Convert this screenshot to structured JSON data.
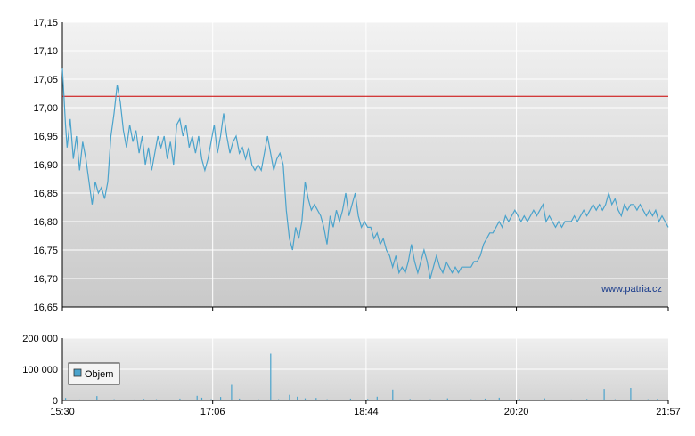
{
  "chart_data": [
    {
      "type": "line",
      "title": "",
      "xlabel": "",
      "ylabel": "",
      "ylim": [
        16.65,
        17.15
      ],
      "yticks": [
        "17,15",
        "17,10",
        "17,05",
        "17,00",
        "16,95",
        "16,90",
        "16,85",
        "16,80",
        "16,75",
        "16,70",
        "16,65"
      ],
      "ytick_values": [
        17.15,
        17.1,
        17.05,
        17.0,
        16.95,
        16.9,
        16.85,
        16.8,
        16.75,
        16.7,
        16.65
      ],
      "xticks": [
        "15:30",
        "17:06",
        "18:44",
        "20:20",
        "21:57"
      ],
      "xtick_values": [
        "15:30",
        "17:06",
        "18:44",
        "20:20",
        "21:57"
      ],
      "xlim": [
        "15:30",
        "21:57"
      ],
      "reference_line": {
        "y": 17.02,
        "color": "#cc0000"
      },
      "series_color": "#4aa3cc",
      "watermark": "www.patria.cz",
      "grid": true,
      "series": [
        {
          "points": [
            [
              "15:30",
              17.07
            ],
            [
              "15:31",
              17.02
            ],
            [
              "15:32",
              16.97
            ],
            [
              "15:33",
              16.93
            ],
            [
              "15:35",
              16.98
            ],
            [
              "15:37",
              16.91
            ],
            [
              "15:39",
              16.95
            ],
            [
              "15:41",
              16.89
            ],
            [
              "15:43",
              16.94
            ],
            [
              "15:45",
              16.91
            ],
            [
              "15:47",
              16.87
            ],
            [
              "15:49",
              16.83
            ],
            [
              "15:51",
              16.87
            ],
            [
              "15:53",
              16.85
            ],
            [
              "15:55",
              16.86
            ],
            [
              "15:57",
              16.84
            ],
            [
              "15:59",
              16.87
            ],
            [
              "16:01",
              16.95
            ],
            [
              "16:03",
              16.99
            ],
            [
              "16:05",
              17.04
            ],
            [
              "16:07",
              17.01
            ],
            [
              "16:09",
              16.96
            ],
            [
              "16:11",
              16.93
            ],
            [
              "16:13",
              16.97
            ],
            [
              "16:15",
              16.94
            ],
            [
              "16:17",
              16.96
            ],
            [
              "16:19",
              16.92
            ],
            [
              "16:21",
              16.95
            ],
            [
              "16:23",
              16.9
            ],
            [
              "16:25",
              16.93
            ],
            [
              "16:27",
              16.89
            ],
            [
              "16:29",
              16.92
            ],
            [
              "16:31",
              16.95
            ],
            [
              "16:33",
              16.93
            ],
            [
              "16:35",
              16.95
            ],
            [
              "16:37",
              16.91
            ],
            [
              "16:39",
              16.94
            ],
            [
              "16:41",
              16.9
            ],
            [
              "16:43",
              16.97
            ],
            [
              "16:45",
              16.98
            ],
            [
              "16:47",
              16.95
            ],
            [
              "16:49",
              16.97
            ],
            [
              "16:51",
              16.93
            ],
            [
              "16:53",
              16.95
            ],
            [
              "16:55",
              16.92
            ],
            [
              "16:57",
              16.95
            ],
            [
              "16:59",
              16.91
            ],
            [
              "17:01",
              16.89
            ],
            [
              "17:03",
              16.91
            ],
            [
              "17:05",
              16.94
            ],
            [
              "17:07",
              16.97
            ],
            [
              "17:09",
              16.92
            ],
            [
              "17:11",
              16.95
            ],
            [
              "17:13",
              16.99
            ],
            [
              "17:15",
              16.95
            ],
            [
              "17:17",
              16.92
            ],
            [
              "17:19",
              16.94
            ],
            [
              "17:21",
              16.95
            ],
            [
              "17:23",
              16.92
            ],
            [
              "17:25",
              16.93
            ],
            [
              "17:27",
              16.91
            ],
            [
              "17:29",
              16.93
            ],
            [
              "17:31",
              16.9
            ],
            [
              "17:33",
              16.89
            ],
            [
              "17:35",
              16.9
            ],
            [
              "17:37",
              16.89
            ],
            [
              "17:39",
              16.92
            ],
            [
              "17:41",
              16.95
            ],
            [
              "17:43",
              16.92
            ],
            [
              "17:45",
              16.89
            ],
            [
              "17:47",
              16.91
            ],
            [
              "17:49",
              16.92
            ],
            [
              "17:51",
              16.9
            ],
            [
              "17:53",
              16.82
            ],
            [
              "17:55",
              16.77
            ],
            [
              "17:57",
              16.75
            ],
            [
              "17:59",
              16.79
            ],
            [
              "18:01",
              16.77
            ],
            [
              "18:03",
              16.8
            ],
            [
              "18:05",
              16.87
            ],
            [
              "18:07",
              16.84
            ],
            [
              "18:09",
              16.82
            ],
            [
              "18:11",
              16.83
            ],
            [
              "18:13",
              16.82
            ],
            [
              "18:15",
              16.81
            ],
            [
              "18:17",
              16.79
            ],
            [
              "18:19",
              16.76
            ],
            [
              "18:21",
              16.81
            ],
            [
              "18:23",
              16.79
            ],
            [
              "18:25",
              16.82
            ],
            [
              "18:27",
              16.8
            ],
            [
              "18:29",
              16.82
            ],
            [
              "18:31",
              16.85
            ],
            [
              "18:33",
              16.81
            ],
            [
              "18:35",
              16.83
            ],
            [
              "18:37",
              16.85
            ],
            [
              "18:39",
              16.81
            ],
            [
              "18:41",
              16.79
            ],
            [
              "18:43",
              16.8
            ],
            [
              "18:45",
              16.79
            ],
            [
              "18:47",
              16.79
            ],
            [
              "18:49",
              16.77
            ],
            [
              "18:51",
              16.78
            ],
            [
              "18:53",
              16.76
            ],
            [
              "18:55",
              16.77
            ],
            [
              "18:57",
              16.75
            ],
            [
              "18:59",
              16.74
            ],
            [
              "19:01",
              16.72
            ],
            [
              "19:03",
              16.74
            ],
            [
              "19:05",
              16.71
            ],
            [
              "19:07",
              16.72
            ],
            [
              "19:09",
              16.71
            ],
            [
              "19:11",
              16.73
            ],
            [
              "19:13",
              16.76
            ],
            [
              "19:15",
              16.73
            ],
            [
              "19:17",
              16.71
            ],
            [
              "19:19",
              16.73
            ],
            [
              "19:21",
              16.75
            ],
            [
              "19:23",
              16.73
            ],
            [
              "19:25",
              16.7
            ],
            [
              "19:27",
              16.72
            ],
            [
              "19:29",
              16.74
            ],
            [
              "19:31",
              16.72
            ],
            [
              "19:33",
              16.71
            ],
            [
              "19:35",
              16.73
            ],
            [
              "19:37",
              16.72
            ],
            [
              "19:39",
              16.71
            ],
            [
              "19:41",
              16.72
            ],
            [
              "19:43",
              16.71
            ],
            [
              "19:45",
              16.72
            ],
            [
              "19:47",
              16.72
            ],
            [
              "19:49",
              16.72
            ],
            [
              "19:51",
              16.72
            ],
            [
              "19:53",
              16.73
            ],
            [
              "19:55",
              16.73
            ],
            [
              "19:57",
              16.74
            ],
            [
              "19:59",
              16.76
            ],
            [
              "20:01",
              16.77
            ],
            [
              "20:03",
              16.78
            ],
            [
              "20:05",
              16.78
            ],
            [
              "20:07",
              16.79
            ],
            [
              "20:09",
              16.8
            ],
            [
              "20:11",
              16.79
            ],
            [
              "20:13",
              16.81
            ],
            [
              "20:15",
              16.8
            ],
            [
              "20:17",
              16.81
            ],
            [
              "20:19",
              16.82
            ],
            [
              "20:21",
              16.81
            ],
            [
              "20:23",
              16.8
            ],
            [
              "20:25",
              16.81
            ],
            [
              "20:27",
              16.8
            ],
            [
              "20:29",
              16.81
            ],
            [
              "20:31",
              16.82
            ],
            [
              "20:33",
              16.81
            ],
            [
              "20:35",
              16.82
            ],
            [
              "20:37",
              16.83
            ],
            [
              "20:39",
              16.8
            ],
            [
              "20:41",
              16.81
            ],
            [
              "20:43",
              16.8
            ],
            [
              "20:45",
              16.79
            ],
            [
              "20:47",
              16.8
            ],
            [
              "20:49",
              16.79
            ],
            [
              "20:51",
              16.8
            ],
            [
              "20:53",
              16.8
            ],
            [
              "20:55",
              16.8
            ],
            [
              "20:57",
              16.81
            ],
            [
              "20:59",
              16.8
            ],
            [
              "21:01",
              16.81
            ],
            [
              "21:03",
              16.82
            ],
            [
              "21:05",
              16.81
            ],
            [
              "21:07",
              16.82
            ],
            [
              "21:09",
              16.83
            ],
            [
              "21:11",
              16.82
            ],
            [
              "21:13",
              16.83
            ],
            [
              "21:15",
              16.82
            ],
            [
              "21:17",
              16.83
            ],
            [
              "21:19",
              16.85
            ],
            [
              "21:21",
              16.83
            ],
            [
              "21:23",
              16.84
            ],
            [
              "21:25",
              16.82
            ],
            [
              "21:27",
              16.81
            ],
            [
              "21:29",
              16.83
            ],
            [
              "21:31",
              16.82
            ],
            [
              "21:33",
              16.83
            ],
            [
              "21:35",
              16.83
            ],
            [
              "21:37",
              16.82
            ],
            [
              "21:39",
              16.83
            ],
            [
              "21:41",
              16.82
            ],
            [
              "21:43",
              16.81
            ],
            [
              "21:45",
              16.82
            ],
            [
              "21:47",
              16.81
            ],
            [
              "21:49",
              16.82
            ],
            [
              "21:51",
              16.8
            ],
            [
              "21:53",
              16.81
            ],
            [
              "21:55",
              16.8
            ],
            [
              "21:57",
              16.79
            ]
          ]
        }
      ]
    },
    {
      "type": "bar",
      "title": "",
      "ylim": [
        0,
        200000
      ],
      "yticks": [
        "200 000",
        "100 000",
        "0"
      ],
      "ytick_values": [
        200000,
        100000,
        0
      ],
      "xticks": [
        "15:30",
        "17:06",
        "18:44",
        "20:20",
        "21:57"
      ],
      "xlim": [
        "15:30",
        "21:57"
      ],
      "grid": true,
      "series_color": "#4aa3cc",
      "series": [
        {
          "name": "Objem",
          "points": [
            [
              "15:32",
              8000
            ],
            [
              "15:41",
              3000
            ],
            [
              "15:52",
              14000
            ],
            [
              "16:03",
              4000
            ],
            [
              "16:16",
              3000
            ],
            [
              "16:22",
              5000
            ],
            [
              "16:30",
              4000
            ],
            [
              "16:45",
              6000
            ],
            [
              "16:56",
              15000
            ],
            [
              "16:59",
              9000
            ],
            [
              "17:05",
              4000
            ],
            [
              "17:11",
              11000
            ],
            [
              "17:18",
              50000
            ],
            [
              "17:23",
              6000
            ],
            [
              "17:35",
              5000
            ],
            [
              "17:43",
              150000
            ],
            [
              "17:48",
              4000
            ],
            [
              "17:55",
              18000
            ],
            [
              "18:00",
              12000
            ],
            [
              "18:05",
              7000
            ],
            [
              "18:12",
              8000
            ],
            [
              "18:19",
              4000
            ],
            [
              "18:34",
              6000
            ],
            [
              "18:45",
              5000
            ],
            [
              "18:51",
              12000
            ],
            [
              "19:01",
              35000
            ],
            [
              "19:12",
              5000
            ],
            [
              "19:25",
              4000
            ],
            [
              "19:36",
              7000
            ],
            [
              "19:51",
              4000
            ],
            [
              "20:00",
              6000
            ],
            [
              "20:09",
              9000
            ],
            [
              "20:22",
              5000
            ],
            [
              "20:38",
              7000
            ],
            [
              "20:55",
              3000
            ],
            [
              "21:05",
              5000
            ],
            [
              "21:16",
              37000
            ],
            [
              "21:23",
              4000
            ],
            [
              "21:33",
              40000
            ],
            [
              "21:44",
              4000
            ],
            [
              "21:50",
              5000
            ]
          ]
        }
      ],
      "legend": {
        "label": "Objem",
        "placement": "top-left"
      }
    }
  ]
}
